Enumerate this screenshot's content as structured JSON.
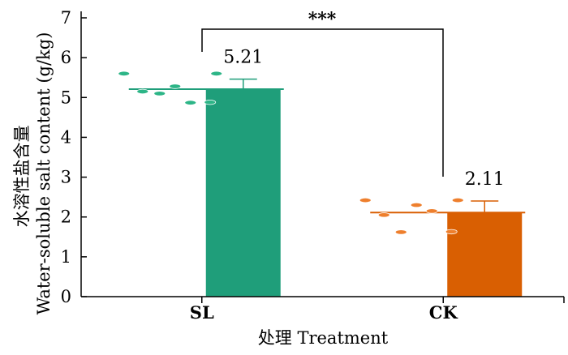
{
  "chart_data": {
    "type": "bar",
    "categories": [
      "SL",
      "CK"
    ],
    "values": [
      5.21,
      2.11
    ],
    "errors": [
      0.25,
      0.29
    ],
    "value_labels": [
      "5.21",
      "2.11"
    ],
    "points": [
      [
        5.6,
        5.15,
        5.1,
        5.28,
        4.87,
        5.6,
        4.88
      ],
      [
        2.42,
        2.05,
        1.62,
        2.3,
        2.15,
        2.42,
        1.63
      ]
    ],
    "colors": [
      "#1f9e7a",
      "#d95f02"
    ],
    "point_colors": [
      "#2db587",
      "#ee7f2d"
    ],
    "xlabel": "处理 Treatment",
    "ylabel_cn": "水溶性盐含量",
    "ylabel_en": "Water-soluble salt content (g/kg)",
    "ylim": [
      0,
      7
    ],
    "yticks": [
      0,
      1,
      2,
      3,
      4,
      5,
      6,
      7
    ],
    "significance": "***"
  }
}
